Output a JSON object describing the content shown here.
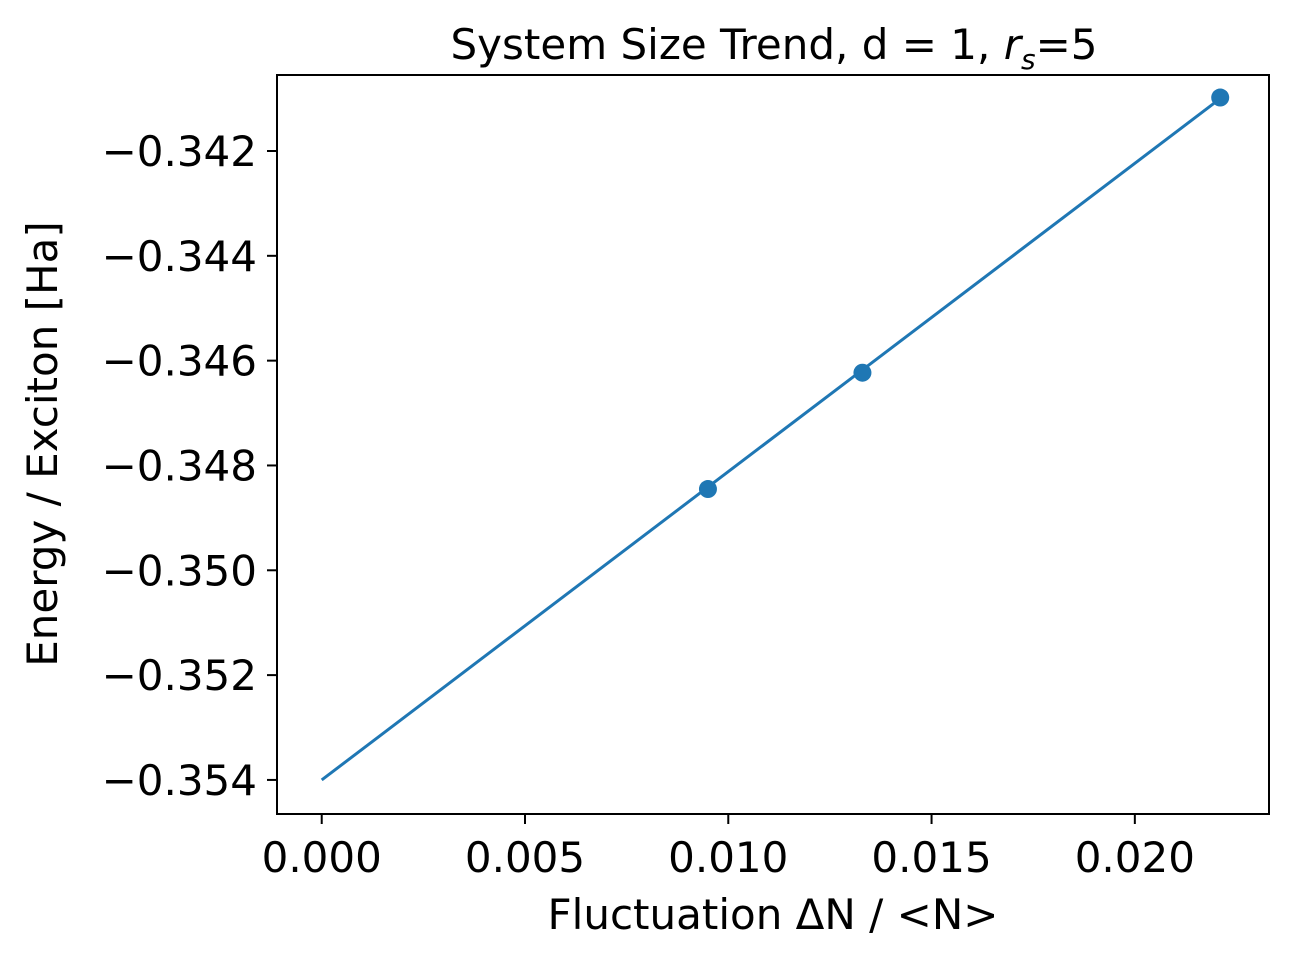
{
  "chart_data": {
    "type": "line",
    "title": {
      "prefix": "System Size Trend, d = 1, ",
      "var": "r",
      "sub": "s",
      "suffix": "=5"
    },
    "xlabel": "Fluctuation ΔN / <N>",
    "ylabel": "Energy / Exciton [Ha]",
    "xlim": [
      -0.0011,
      0.0233
    ],
    "ylim": [
      -0.35465,
      -0.34055
    ],
    "xticks": [
      0.0,
      0.005,
      0.01,
      0.015,
      0.02
    ],
    "xtick_labels": [
      "0.000",
      "0.005",
      "0.010",
      "0.015",
      "0.020"
    ],
    "yticks": [
      -0.342,
      -0.344,
      -0.346,
      -0.348,
      -0.35,
      -0.352,
      -0.354
    ],
    "ytick_labels": [
      "−0.342",
      "−0.344",
      "−0.346",
      "−0.348",
      "−0.350",
      "−0.352",
      "−0.354"
    ],
    "grid": false,
    "series": [
      {
        "kind": "line",
        "color": "#1f77b4",
        "x": [
          0.0,
          0.0221
        ],
        "y": [
          -0.354,
          -0.341
        ]
      },
      {
        "kind": "scatter",
        "color": "#1f77b4",
        "x": [
          0.0095,
          0.0133,
          0.0221
        ],
        "y": [
          -0.34845,
          -0.34623,
          -0.34098
        ]
      }
    ]
  }
}
